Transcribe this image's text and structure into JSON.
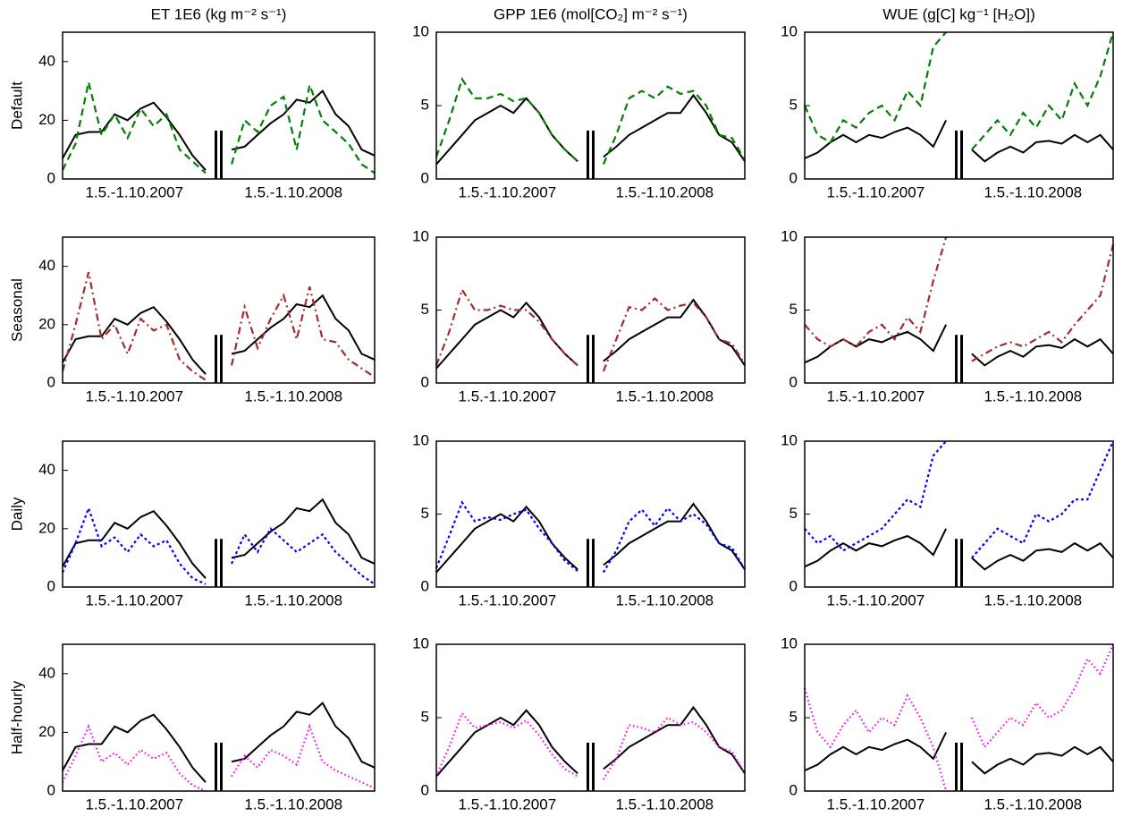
{
  "column_titles": [
    "ET  1E6 (kg m⁻² s⁻¹)",
    "GPP  1E6 (mol[CO₂] m⁻² s⁻¹)",
    "WUE  (g[C] kg⁻¹ [H₂O])"
  ],
  "row_labels": [
    "Default",
    "Seasonal",
    "Daily",
    "Half-hourly"
  ],
  "chart_data": [
    {
      "type": "line",
      "ylim": [
        0,
        50
      ],
      "yticks": [
        0,
        20,
        40
      ],
      "period_labels": [
        "1.5.-1.10.2007",
        "1.5.-1.10.2008"
      ],
      "series": [
        {
          "color": "#000000",
          "dash": "solid",
          "values": [
            7,
            15,
            16,
            16,
            22,
            20,
            24,
            26,
            21,
            15,
            8,
            3,
            null,
            10,
            11,
            15,
            19,
            22,
            27,
            26,
            30,
            22,
            18,
            10,
            8
          ]
        },
        {
          "color": "#008000",
          "dash": "dashed",
          "values": [
            3,
            12,
            33,
            15,
            22,
            14,
            24,
            18,
            22,
            10,
            6,
            2,
            null,
            5,
            20,
            16,
            25,
            28,
            10,
            32,
            20,
            16,
            12,
            5,
            2
          ]
        }
      ]
    },
    {
      "type": "line",
      "ylim": [
        0,
        10
      ],
      "yticks": [
        0,
        5,
        10
      ],
      "period_labels": [
        "1.5.-1.10.2007",
        "1.5.-1.10.2008"
      ],
      "series": [
        {
          "color": "#000000",
          "dash": "solid",
          "values": [
            1,
            2,
            3,
            4,
            4.5,
            5,
            4.5,
            5.5,
            4.5,
            3,
            2,
            1.2,
            null,
            1.5,
            2.2,
            3,
            3.5,
            4,
            4.5,
            4.5,
            5.7,
            4.5,
            3,
            2.5,
            1.2
          ]
        },
        {
          "color": "#008000",
          "dash": "dashed",
          "values": [
            1.5,
            4,
            6.8,
            5.5,
            5.5,
            5.8,
            5.3,
            5.5,
            4.5,
            3,
            2,
            1.2,
            null,
            1,
            3,
            5.5,
            6,
            5.5,
            6.3,
            5.8,
            6,
            5,
            3,
            2.8,
            1.3
          ]
        }
      ]
    },
    {
      "type": "line",
      "ylim": [
        0,
        10
      ],
      "yticks": [
        0,
        5,
        10
      ],
      "period_labels": [
        "1.5.-1.10.2007",
        "1.5.-1.10.2008"
      ],
      "series": [
        {
          "color": "#000000",
          "dash": "solid",
          "values": [
            1.4,
            1.8,
            2.5,
            3,
            2.5,
            3,
            2.8,
            3.2,
            3.5,
            3,
            2.2,
            4,
            null,
            2,
            1.2,
            1.8,
            2.2,
            1.8,
            2.5,
            2.6,
            2.4,
            3,
            2.5,
            3,
            2
          ]
        },
        {
          "color": "#008000",
          "dash": "dashed",
          "values": [
            5,
            3,
            2.5,
            4,
            3.5,
            4.5,
            5,
            4,
            6,
            5,
            9,
            10,
            null,
            2,
            3,
            4,
            3,
            4.5,
            3.5,
            5,
            4,
            6.5,
            5,
            7,
            10
          ]
        }
      ]
    },
    {
      "type": "line",
      "ylim": [
        0,
        50
      ],
      "yticks": [
        0,
        20,
        40
      ],
      "period_labels": [
        "1.5.-1.10.2007",
        "1.5.-1.10.2008"
      ],
      "series": [
        {
          "color": "#000000",
          "dash": "solid",
          "values": [
            7,
            15,
            16,
            16,
            22,
            20,
            24,
            26,
            21,
            15,
            8,
            3,
            null,
            10,
            11,
            15,
            19,
            22,
            27,
            26,
            30,
            22,
            18,
            10,
            8
          ]
        },
        {
          "color": "#a52a2a",
          "dash": "dashdot",
          "values": [
            4,
            20,
            38,
            15,
            20,
            10,
            22,
            18,
            20,
            8,
            4,
            1,
            null,
            6,
            26,
            12,
            22,
            30,
            15,
            33,
            15,
            14,
            8,
            5,
            2
          ]
        }
      ]
    },
    {
      "type": "line",
      "ylim": [
        0,
        10
      ],
      "yticks": [
        0,
        5,
        10
      ],
      "period_labels": [
        "1.5.-1.10.2007",
        "1.5.-1.10.2008"
      ],
      "series": [
        {
          "color": "#000000",
          "dash": "solid",
          "values": [
            1,
            2,
            3,
            4,
            4.5,
            5,
            4.5,
            5.5,
            4.5,
            3,
            2,
            1.2,
            null,
            1.5,
            2.2,
            3,
            3.5,
            4,
            4.5,
            4.5,
            5.7,
            4.5,
            3,
            2.5,
            1.2
          ]
        },
        {
          "color": "#a52a2a",
          "dash": "dashdot",
          "values": [
            1.2,
            3.5,
            6.4,
            5,
            5,
            5.3,
            5,
            5,
            4.2,
            3,
            2,
            1.2,
            null,
            0.8,
            3,
            5.2,
            5,
            5.8,
            5,
            5.3,
            5.5,
            4.5,
            3,
            2.7,
            1.3
          ]
        }
      ]
    },
    {
      "type": "line",
      "ylim": [
        0,
        10
      ],
      "yticks": [
        0,
        5,
        10
      ],
      "period_labels": [
        "1.5.-1.10.2007",
        "1.5.-1.10.2008"
      ],
      "series": [
        {
          "color": "#000000",
          "dash": "solid",
          "values": [
            1.4,
            1.8,
            2.5,
            3,
            2.5,
            3,
            2.8,
            3.2,
            3.5,
            3,
            2.2,
            4,
            null,
            2,
            1.2,
            1.8,
            2.2,
            1.8,
            2.5,
            2.6,
            2.4,
            3,
            2.5,
            3,
            2
          ]
        },
        {
          "color": "#a52a2a",
          "dash": "dashdot",
          "values": [
            4,
            3,
            2.5,
            3,
            2.5,
            3.5,
            4,
            3,
            4.5,
            3.5,
            7,
            10,
            null,
            1.5,
            2,
            2.5,
            2.8,
            2.5,
            3,
            3.5,
            2.8,
            4,
            5,
            6,
            9.5
          ]
        }
      ]
    },
    {
      "type": "line",
      "ylim": [
        0,
        50
      ],
      "yticks": [
        0,
        20,
        40
      ],
      "period_labels": [
        "1.5.-1.10.2007",
        "1.5.-1.10.2008"
      ],
      "series": [
        {
          "color": "#000000",
          "dash": "solid",
          "values": [
            7,
            15,
            16,
            16,
            22,
            20,
            24,
            26,
            21,
            15,
            8,
            3,
            null,
            10,
            11,
            15,
            19,
            22,
            27,
            26,
            30,
            22,
            18,
            10,
            8
          ]
        },
        {
          "color": "#0000ff",
          "dash": "dotted",
          "values": [
            5,
            15,
            27,
            14,
            17,
            12,
            18,
            14,
            16,
            8,
            3,
            1,
            null,
            8,
            18,
            12,
            20,
            16,
            12,
            15,
            18,
            12,
            8,
            4,
            1
          ]
        }
      ]
    },
    {
      "type": "line",
      "ylim": [
        0,
        10
      ],
      "yticks": [
        0,
        5,
        10
      ],
      "period_labels": [
        "1.5.-1.10.2007",
        "1.5.-1.10.2008"
      ],
      "series": [
        {
          "color": "#000000",
          "dash": "solid",
          "values": [
            1,
            2,
            3,
            4,
            4.5,
            5,
            4.5,
            5.5,
            4.5,
            3,
            2,
            1.2,
            null,
            1.5,
            2.2,
            3,
            3.5,
            4,
            4.5,
            4.5,
            5.7,
            4.5,
            3,
            2.5,
            1.2
          ]
        },
        {
          "color": "#0000ff",
          "dash": "dotted",
          "values": [
            1.3,
            3.5,
            5.8,
            4.5,
            4.8,
            4.6,
            5,
            5.3,
            4,
            3,
            1.8,
            1.1,
            null,
            1,
            2.5,
            4.5,
            5.3,
            4.2,
            5.4,
            4.5,
            5,
            4.3,
            3,
            2.7,
            1.2
          ]
        }
      ]
    },
    {
      "type": "line",
      "ylim": [
        0,
        10
      ],
      "yticks": [
        0,
        5,
        10
      ],
      "period_labels": [
        "1.5.-1.10.2007",
        "1.5.-1.10.2008"
      ],
      "series": [
        {
          "color": "#000000",
          "dash": "solid",
          "values": [
            1.4,
            1.8,
            2.5,
            3,
            2.5,
            3,
            2.8,
            3.2,
            3.5,
            3,
            2.2,
            4,
            null,
            2,
            1.2,
            1.8,
            2.2,
            1.8,
            2.5,
            2.6,
            2.4,
            3,
            2.5,
            3,
            2
          ]
        },
        {
          "color": "#0000ff",
          "dash": "dotted",
          "values": [
            4,
            3,
            3.5,
            2.5,
            3,
            3.5,
            4,
            5,
            6,
            5.5,
            9,
            10,
            null,
            2,
            3,
            4,
            3.5,
            3,
            5,
            4.5,
            5,
            6,
            6,
            8,
            10
          ]
        }
      ]
    },
    {
      "type": "line",
      "ylim": [
        0,
        50
      ],
      "yticks": [
        0,
        20,
        40
      ],
      "period_labels": [
        "1.5.-1.10.2007",
        "1.5.-1.10.2008"
      ],
      "series": [
        {
          "color": "#000000",
          "dash": "solid",
          "values": [
            7,
            15,
            16,
            16,
            22,
            20,
            24,
            26,
            21,
            15,
            8,
            3,
            null,
            10,
            11,
            15,
            19,
            22,
            27,
            26,
            30,
            22,
            18,
            10,
            8
          ]
        },
        {
          "color": "#ff00ff",
          "dash": "finedot",
          "values": [
            3,
            12,
            22,
            10,
            13,
            9,
            14,
            11,
            13,
            6,
            2,
            0,
            null,
            5,
            12,
            8,
            14,
            12,
            9,
            22,
            10,
            7,
            5,
            3,
            1
          ]
        }
      ]
    },
    {
      "type": "line",
      "ylim": [
        0,
        10
      ],
      "yticks": [
        0,
        5,
        10
      ],
      "period_labels": [
        "1.5.-1.10.2007",
        "1.5.-1.10.2008"
      ],
      "series": [
        {
          "color": "#000000",
          "dash": "solid",
          "values": [
            1,
            2,
            3,
            4,
            4.5,
            5,
            4.5,
            5.5,
            4.5,
            3,
            2,
            1.2,
            null,
            1.5,
            2.2,
            3,
            3.5,
            4,
            4.5,
            4.5,
            5.7,
            4.5,
            3,
            2.5,
            1.2
          ]
        },
        {
          "color": "#ff00ff",
          "dash": "finedot",
          "values": [
            1,
            3,
            5.3,
            4.3,
            4.5,
            4.7,
            4.3,
            4.8,
            3.8,
            2.5,
            1.5,
            1,
            null,
            0.8,
            2.2,
            4.5,
            4.3,
            4,
            5,
            4.5,
            4.7,
            4,
            3,
            2.7,
            1.2
          ]
        }
      ]
    },
    {
      "type": "line",
      "ylim": [
        0,
        10
      ],
      "yticks": [
        0,
        5,
        10
      ],
      "period_labels": [
        "1.5.-1.10.2007",
        "1.5.-1.10.2008"
      ],
      "series": [
        {
          "color": "#000000",
          "dash": "solid",
          "values": [
            1.4,
            1.8,
            2.5,
            3,
            2.5,
            3,
            2.8,
            3.2,
            3.5,
            3,
            2.2,
            4,
            null,
            2,
            1.2,
            1.8,
            2.2,
            1.8,
            2.5,
            2.6,
            2.4,
            3,
            2.5,
            3,
            2
          ]
        },
        {
          "color": "#ff00ff",
          "dash": "finedot",
          "values": [
            7,
            4,
            3,
            4.5,
            5.5,
            4,
            5,
            4.5,
            6.5,
            5,
            3,
            0,
            null,
            5,
            3,
            4,
            5,
            4.5,
            6,
            5,
            5.5,
            7,
            9,
            8,
            10
          ]
        }
      ]
    }
  ]
}
